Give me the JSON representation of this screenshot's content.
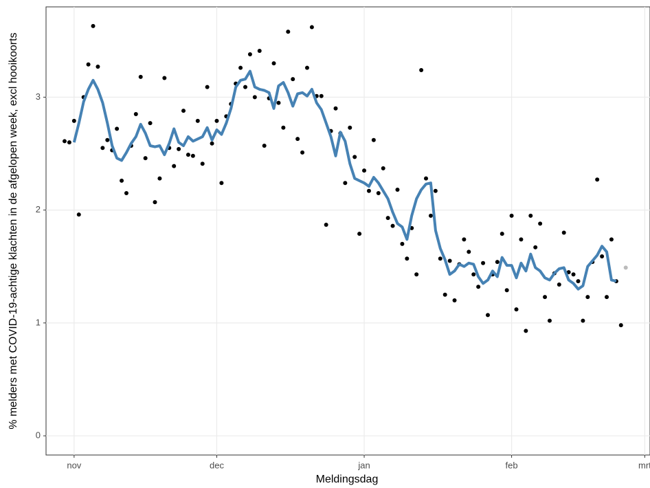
{
  "chart_data": {
    "type": "scatter",
    "xlabel": "Meldingsdag",
    "ylabel": "% melders met COVID-19-achtige klachten in de afgelopen week, excl hooikoorts",
    "xlim": [
      -5.9,
      121.1
    ],
    "ylim": [
      -0.17,
      3.8
    ],
    "xticks": [
      {
        "value": 0,
        "label": "nov"
      },
      {
        "value": 30,
        "label": "dec"
      },
      {
        "value": 61,
        "label": "jan"
      },
      {
        "value": 92,
        "label": "feb"
      },
      {
        "value": 120,
        "label": "mrt"
      }
    ],
    "yticks": [
      0,
      1,
      2,
      3
    ],
    "grid": true,
    "series": [
      {
        "type": "scatter",
        "color": "#000000",
        "x": [
          -2,
          -1,
          0,
          1,
          2,
          3,
          4,
          5,
          6,
          7,
          8,
          9,
          10,
          11,
          12,
          13,
          14,
          15,
          16,
          17,
          18,
          19,
          20,
          21,
          22,
          23,
          24,
          25,
          26,
          27,
          28,
          29,
          30,
          31,
          32,
          33,
          34,
          35,
          36,
          37,
          38,
          39,
          40,
          41,
          42,
          43,
          44,
          45,
          46,
          47,
          48,
          49,
          50,
          51,
          52,
          53,
          54,
          55,
          56,
          57,
          58,
          59,
          60,
          61,
          62,
          63,
          64,
          65,
          66,
          67,
          68,
          69,
          70,
          71,
          72,
          73,
          74,
          75,
          76,
          77,
          78,
          79,
          80,
          81,
          82,
          83,
          84,
          85,
          86,
          87,
          88,
          89,
          90,
          91,
          92,
          93,
          94,
          95,
          96,
          97,
          98,
          99,
          100,
          101,
          102,
          103,
          104,
          105,
          106,
          107,
          108,
          109,
          110,
          111,
          112,
          113,
          114,
          115
        ],
        "values": [
          2.61,
          2.6,
          2.79,
          1.96,
          3.0,
          3.29,
          3.63,
          3.27,
          2.55,
          2.62,
          2.53,
          2.72,
          2.26,
          2.15,
          2.57,
          2.85,
          3.18,
          2.46,
          2.77,
          2.07,
          2.28,
          3.17,
          2.55,
          2.39,
          2.54,
          2.88,
          2.49,
          2.48,
          2.79,
          2.41,
          3.09,
          2.59,
          2.79,
          2.24,
          2.83,
          2.94,
          3.12,
          3.26,
          3.09,
          3.38,
          3.0,
          3.41,
          2.57,
          2.99,
          3.3,
          2.95,
          2.73,
          3.58,
          3.16,
          2.63,
          2.51,
          3.26,
          3.62,
          3.01,
          3.01,
          1.87,
          2.7,
          2.9,
          2.68,
          2.24,
          2.73,
          2.47,
          1.79,
          2.35,
          2.17,
          2.62,
          2.15,
          2.37,
          1.93,
          1.86,
          2.18,
          1.7,
          1.57,
          1.84,
          1.43,
          3.24,
          2.28,
          1.95,
          2.17,
          1.57,
          1.25,
          1.55,
          1.2,
          1.52,
          1.74,
          1.63,
          1.43,
          1.32,
          1.53,
          1.07,
          1.43,
          1.54,
          1.79,
          1.29,
          1.95,
          1.12,
          1.74,
          0.93,
          1.95,
          1.67,
          1.88,
          1.23,
          1.02,
          1.44,
          1.34,
          1.8,
          1.45,
          1.43,
          1.37,
          1.02,
          1.23,
          1.54,
          2.27,
          1.59,
          1.23,
          1.74,
          1.37,
          0.98
        ]
      },
      {
        "type": "scatter",
        "color": "#bbbbbb",
        "x": [
          116
        ],
        "values": [
          1.49
        ]
      },
      {
        "type": "line",
        "color": "#4682b4",
        "x": [
          0,
          1,
          2,
          3,
          4,
          5,
          6,
          7,
          8,
          9,
          10,
          11,
          12,
          13,
          14,
          15,
          16,
          17,
          18,
          19,
          20,
          21,
          22,
          23,
          24,
          25,
          26,
          27,
          28,
          29,
          30,
          31,
          32,
          33,
          34,
          35,
          36,
          37,
          38,
          39,
          40,
          41,
          42,
          43,
          44,
          45,
          46,
          47,
          48,
          49,
          50,
          51,
          52,
          53,
          54,
          55,
          56,
          57,
          58,
          59,
          60,
          61,
          62,
          63,
          64,
          65,
          66,
          67,
          68,
          69,
          70,
          71,
          72,
          73,
          74,
          75,
          76,
          77,
          78,
          79,
          80,
          81,
          82,
          83,
          84,
          85,
          86,
          87,
          88,
          89,
          90,
          91,
          92,
          93,
          94,
          95,
          96,
          97,
          98,
          99,
          100,
          101,
          102,
          103,
          104,
          105,
          106,
          107,
          108,
          109,
          110,
          111,
          112,
          113,
          114
        ],
        "values": [
          2.6,
          2.77,
          2.96,
          3.07,
          3.15,
          3.07,
          2.95,
          2.77,
          2.57,
          2.46,
          2.44,
          2.51,
          2.59,
          2.65,
          2.76,
          2.68,
          2.57,
          2.56,
          2.57,
          2.49,
          2.59,
          2.72,
          2.6,
          2.57,
          2.65,
          2.61,
          2.63,
          2.65,
          2.73,
          2.62,
          2.71,
          2.67,
          2.77,
          2.9,
          3.09,
          3.15,
          3.16,
          3.23,
          3.09,
          3.07,
          3.06,
          3.04,
          2.9,
          3.1,
          3.13,
          3.04,
          2.92,
          3.03,
          3.04,
          3.01,
          3.07,
          2.95,
          2.89,
          2.77,
          2.65,
          2.48,
          2.69,
          2.61,
          2.41,
          2.28,
          2.26,
          2.24,
          2.21,
          2.29,
          2.24,
          2.17,
          2.1,
          1.98,
          1.88,
          1.85,
          1.74,
          1.95,
          2.1,
          2.18,
          2.23,
          2.24,
          1.82,
          1.66,
          1.56,
          1.43,
          1.46,
          1.52,
          1.5,
          1.53,
          1.52,
          1.41,
          1.35,
          1.38,
          1.46,
          1.41,
          1.58,
          1.51,
          1.51,
          1.4,
          1.53,
          1.46,
          1.61,
          1.49,
          1.46,
          1.4,
          1.38,
          1.44,
          1.48,
          1.49,
          1.38,
          1.35,
          1.3,
          1.33,
          1.5,
          1.55,
          1.6,
          1.68,
          1.63,
          1.38,
          1.37
        ]
      }
    ]
  }
}
